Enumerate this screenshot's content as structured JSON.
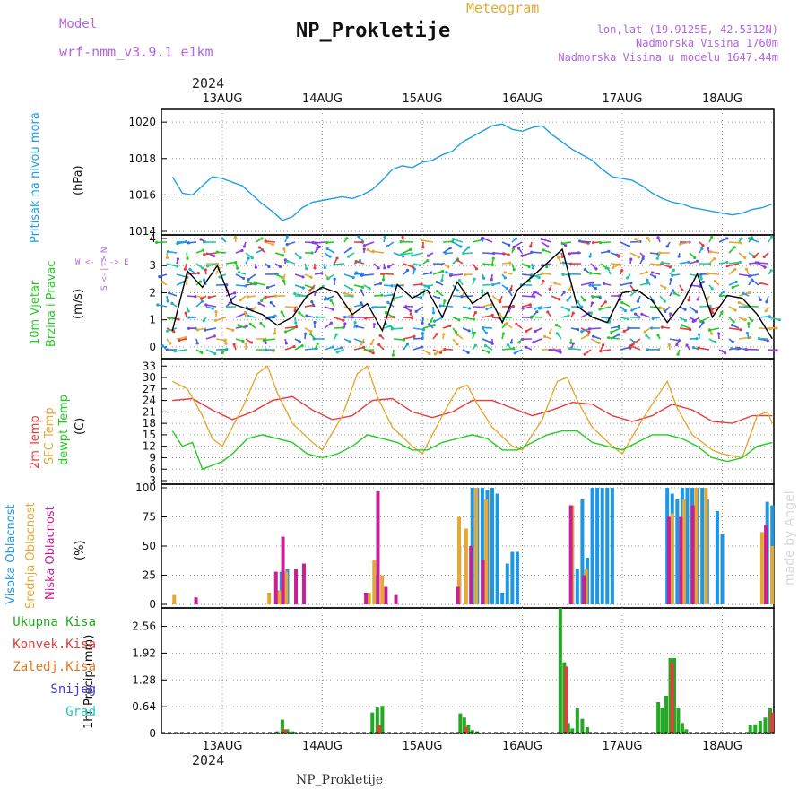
{
  "header": {
    "model_label": "Model",
    "model_name": "wrf-nmm_v3.9.1 e1km",
    "title": "NP_Prokletije",
    "subtitle": "Meteogram",
    "lonlat": "lon,lat (19.9125E, 42.5312N)",
    "elevation": "Nadmorska Visina 1760m",
    "model_elevation": "Nadmorska Visina u modelu 1647.44m",
    "year_top": "2024",
    "year_bottom": "2024",
    "footer": "NP_Prokletije",
    "credit": "made by Angel"
  },
  "colors": {
    "pressure": "#1ea0e6",
    "wind_label": "#22cc22",
    "temp2m": "#e63c3c",
    "sfctemp": "#e6a832",
    "dewpt": "#22cc22",
    "cloud_high": "#1e96e6",
    "cloud_mid": "#e6a832",
    "cloud_low": "#c81e96",
    "precip_total": "#22aa22",
    "precip_conv": "#e63c3c",
    "precip_frozen": "#e6781e",
    "snow": "#3c3ce6",
    "graupel": "#1ec8c8",
    "compass": "#b464e6"
  },
  "labels": {
    "pressure_y": "Pritisak na nivou mora",
    "pressure_unit": "(hPa)",
    "wind_y1": "10m Vjetar",
    "wind_y2": "Brzina i Pravac",
    "wind_unit": "(m/s)",
    "compass": "W  <- | ->  E",
    "compass_vertical": "S <- | -> N",
    "temp_y1": "2m Temp",
    "temp_y2": "SFC Temp",
    "temp_y3": "dewpt Temp",
    "temp_unit": "(C)",
    "cloud_y1": "Visoka Oblacnost",
    "cloud_y2": "Srednja Oblacnost",
    "cloud_y3": "Niska Oblacnost",
    "cloud_unit": "(%)",
    "precip_legend": [
      "Ukupna Kisa",
      "Konvek.Kisa",
      "Zaledj.Kisa",
      "Snijeg",
      "Grad"
    ],
    "precip_unit": "1hr Precip (mm)"
  },
  "chart_data": [
    {
      "type": "line",
      "panel": "pressure",
      "x_categories": [
        "13AUG",
        "14AUG",
        "15AUG",
        "16AUG",
        "17AUG",
        "18AUG"
      ],
      "ylabel": "(hPa)",
      "yticks": [
        1014,
        1016,
        1018,
        1020
      ],
      "ylim": [
        1014,
        1020.5
      ],
      "grid": true,
      "series": [
        {
          "name": "Pritisak na nivou mora",
          "color": "#1ea0e6",
          "x": [
            -0.5,
            -0.4,
            -0.3,
            -0.2,
            -0.1,
            0.0,
            0.1,
            0.2,
            0.3,
            0.4,
            0.5,
            0.6,
            0.7,
            0.8,
            0.9,
            1.0,
            1.1,
            1.2,
            1.3,
            1.4,
            1.5,
            1.6,
            1.7,
            1.8,
            1.9,
            2.0,
            2.1,
            2.2,
            2.3,
            2.4,
            2.5,
            2.6,
            2.7,
            2.8,
            2.9,
            3.0,
            3.1,
            3.2,
            3.3,
            3.4,
            3.5,
            3.6,
            3.7,
            3.8,
            3.9,
            4.0,
            4.1,
            4.2,
            4.3,
            4.4,
            4.5,
            4.6,
            4.7,
            4.8,
            4.9,
            5.0,
            5.1,
            5.2,
            5.3,
            5.4,
            5.5
          ],
          "y": [
            1017.0,
            1016.1,
            1016.0,
            1016.5,
            1017.0,
            1016.9,
            1016.7,
            1016.5,
            1016.0,
            1015.5,
            1015.1,
            1014.6,
            1014.8,
            1015.3,
            1015.6,
            1015.7,
            1015.8,
            1015.9,
            1015.8,
            1016.0,
            1016.3,
            1016.8,
            1017.4,
            1017.6,
            1017.5,
            1017.8,
            1017.9,
            1018.2,
            1018.4,
            1018.9,
            1019.2,
            1019.5,
            1019.8,
            1019.9,
            1019.6,
            1019.5,
            1019.7,
            1019.8,
            1019.3,
            1018.9,
            1018.5,
            1018.2,
            1017.9,
            1017.4,
            1017.0,
            1016.9,
            1016.8,
            1016.5,
            1016.1,
            1015.8,
            1015.6,
            1015.5,
            1015.3,
            1015.2,
            1015.1,
            1015.0,
            1014.9,
            1015.0,
            1015.2,
            1015.3,
            1015.5
          ]
        }
      ]
    },
    {
      "type": "line",
      "panel": "wind",
      "x_categories": [
        "13AUG",
        "14AUG",
        "15AUG",
        "16AUG",
        "17AUG",
        "18AUG"
      ],
      "ylabel": "(m/s)",
      "yticks": [
        0,
        1,
        2,
        3,
        4
      ],
      "ylim": [
        -0.3,
        4
      ],
      "grid": true,
      "series": [
        {
          "name": "Brzina",
          "color": "#000000",
          "x": [
            -0.5,
            -0.35,
            -0.2,
            -0.05,
            0.1,
            0.25,
            0.4,
            0.55,
            0.7,
            0.85,
            1.0,
            1.15,
            1.3,
            1.45,
            1.6,
            1.75,
            1.9,
            2.05,
            2.2,
            2.35,
            2.5,
            2.65,
            2.8,
            2.95,
            3.1,
            3.25,
            3.4,
            3.55,
            3.7,
            3.85,
            4.0,
            4.15,
            4.3,
            4.45,
            4.6,
            4.75,
            4.9,
            5.05,
            5.2,
            5.35,
            5.5
          ],
          "y": [
            0.6,
            2.8,
            2.2,
            3.0,
            1.6,
            1.4,
            1.2,
            0.8,
            1.1,
            1.9,
            2.2,
            2.0,
            1.2,
            1.6,
            0.6,
            2.3,
            1.8,
            2.1,
            1.1,
            2.4,
            1.6,
            2.0,
            0.9,
            2.1,
            2.6,
            3.1,
            3.6,
            1.5,
            1.1,
            0.9,
            2.0,
            2.1,
            1.7,
            0.9,
            1.6,
            2.7,
            1.1,
            1.9,
            1.8,
            1.2,
            0.3
          ]
        }
      ]
    },
    {
      "type": "line",
      "panel": "temperature",
      "x_categories": [
        "13AUG",
        "14AUG",
        "15AUG",
        "16AUG",
        "17AUG",
        "18AUG"
      ],
      "ylabel": "(C)",
      "yticks": [
        3,
        6,
        9,
        12,
        15,
        18,
        21,
        24,
        27,
        30,
        33
      ],
      "ylim": [
        3,
        34
      ],
      "grid": true,
      "series": [
        {
          "name": "2m Temp",
          "color": "#e63c3c",
          "x": [
            -0.5,
            -0.3,
            -0.1,
            0.1,
            0.3,
            0.5,
            0.7,
            0.9,
            1.1,
            1.3,
            1.5,
            1.7,
            1.9,
            2.1,
            2.3,
            2.5,
            2.7,
            2.9,
            3.1,
            3.3,
            3.5,
            3.7,
            3.9,
            4.1,
            4.3,
            4.5,
            4.7,
            4.9,
            5.1,
            5.3,
            5.5
          ],
          "y": [
            24.0,
            24.5,
            21.5,
            19.0,
            21.0,
            24.0,
            25.0,
            21.5,
            19.0,
            20.0,
            24.0,
            24.5,
            21.0,
            19.5,
            21.0,
            24.0,
            24.0,
            22.0,
            20.0,
            21.5,
            23.5,
            23.0,
            20.0,
            18.5,
            20.0,
            23.0,
            21.5,
            18.5,
            18.0,
            20.0,
            20.0
          ]
        },
        {
          "name": "SFC Temp",
          "color": "#e6a832",
          "x": [
            -0.5,
            -0.35,
            -0.2,
            -0.1,
            0.0,
            0.2,
            0.35,
            0.45,
            0.55,
            0.7,
            0.9,
            1.0,
            1.2,
            1.35,
            1.45,
            1.55,
            1.7,
            1.9,
            2.0,
            2.2,
            2.35,
            2.45,
            2.55,
            2.7,
            2.9,
            3.0,
            3.2,
            3.35,
            3.45,
            3.55,
            3.7,
            3.9,
            4.0,
            4.2,
            4.35,
            4.45,
            4.55,
            4.7,
            4.9,
            5.0,
            5.2,
            5.35,
            5.45,
            5.5
          ],
          "y": [
            29.0,
            27.0,
            20.0,
            14.0,
            12.0,
            22.0,
            31.0,
            33.0,
            26.0,
            18.0,
            13.0,
            11.0,
            20.0,
            31.0,
            33.0,
            25.0,
            17.0,
            12.0,
            10.0,
            20.0,
            27.0,
            28.0,
            23.0,
            17.0,
            12.0,
            11.0,
            19.0,
            29.0,
            30.0,
            24.0,
            17.0,
            12.0,
            10.0,
            19.0,
            25.0,
            29.0,
            22.0,
            15.0,
            11.0,
            10.0,
            9.0,
            20.0,
            21.0,
            18.0
          ]
        },
        {
          "name": "dewpt Temp",
          "color": "#22cc22",
          "x": [
            -0.5,
            -0.4,
            -0.3,
            -0.2,
            -0.1,
            0.0,
            0.1,
            0.25,
            0.4,
            0.55,
            0.7,
            0.85,
            1.0,
            1.15,
            1.3,
            1.45,
            1.6,
            1.75,
            1.9,
            2.05,
            2.2,
            2.35,
            2.5,
            2.65,
            2.8,
            2.95,
            3.1,
            3.25,
            3.4,
            3.55,
            3.7,
            3.85,
            4.0,
            4.15,
            4.3,
            4.45,
            4.6,
            4.75,
            4.9,
            5.05,
            5.2,
            5.35,
            5.5
          ],
          "y": [
            16.0,
            12.0,
            13.0,
            6.0,
            7.0,
            8.0,
            10.0,
            14.0,
            15.0,
            14.0,
            13.0,
            10.0,
            9.0,
            10.0,
            12.0,
            15.0,
            14.0,
            13.0,
            11.0,
            11.0,
            13.0,
            14.0,
            15.0,
            14.0,
            11.0,
            11.0,
            13.0,
            15.0,
            16.0,
            16.0,
            13.0,
            12.0,
            11.0,
            13.0,
            15.0,
            15.0,
            14.0,
            12.0,
            9.0,
            8.0,
            9.0,
            12.0,
            13.0
          ]
        }
      ]
    },
    {
      "type": "bar",
      "panel": "cloud",
      "x_categories": [
        "13AUG",
        "14AUG",
        "15AUG",
        "16AUG",
        "17AUG",
        "18AUG"
      ],
      "ylabel": "(%)",
      "yticks": [
        0,
        25,
        50,
        75,
        100
      ],
      "ylim": [
        0,
        100
      ],
      "grid": true,
      "series": [
        {
          "name": "Visoka Oblacnost",
          "color": "#1e96e6",
          "x": [
            0.59,
            0.65,
            1.55,
            2.37,
            2.5,
            2.55,
            2.6,
            2.65,
            2.7,
            2.75,
            2.8,
            2.85,
            2.9,
            2.95,
            3.0,
            3.05,
            3.5,
            3.55,
            3.6,
            3.65,
            3.7,
            3.75,
            3.8,
            3.85,
            3.9,
            4.45,
            4.5,
            4.55,
            4.6,
            4.65,
            4.7,
            4.75,
            4.8,
            4.85,
            4.95,
            5.0,
            5.05,
            5.45,
            5.5
          ],
          "y": [
            28,
            30,
            25,
            50,
            100,
            100,
            100,
            98,
            100,
            95,
            10,
            35,
            45,
            45,
            0,
            0,
            85,
            30,
            90,
            40,
            100,
            100,
            100,
            100,
            100,
            100,
            95,
            90,
            100,
            100,
            100,
            100,
            100,
            90,
            80,
            60,
            0,
            88,
            85
          ]
        },
        {
          "name": "Srednja Oblacnost",
          "color": "#e6a832",
          "x": [
            -0.5,
            -0.15,
            0.45,
            0.55,
            0.62,
            1.45,
            1.5,
            1.58,
            2.35,
            2.42,
            2.52,
            2.62,
            3.48,
            3.62,
            4.48,
            4.6,
            4.72,
            4.82,
            5.38,
            5.42,
            5.48
          ],
          "y": [
            8,
            0,
            10,
            12,
            28,
            10,
            38,
            25,
            75,
            65,
            100,
            90,
            85,
            30,
            78,
            90,
            100,
            100,
            62,
            60,
            50
          ]
        },
        {
          "name": "Niska Oblacnost",
          "color": "#c81e96",
          "x": [
            -0.3,
            0.5,
            0.57,
            0.7,
            0.78,
            1.4,
            1.52,
            1.6,
            1.7,
            2.32,
            2.45,
            2.57,
            3.45,
            3.58,
            4.43,
            4.55,
            4.67,
            5.4,
            5.5
          ],
          "y": [
            6,
            28,
            58,
            30,
            35,
            10,
            97,
            15,
            8,
            15,
            50,
            38,
            85,
            25,
            75,
            75,
            85,
            68,
            70
          ]
        }
      ]
    },
    {
      "type": "bar",
      "panel": "precip",
      "x_categories": [
        "13AUG",
        "14AUG",
        "15AUG",
        "16AUG",
        "17AUG",
        "18AUG"
      ],
      "ylabel": "1hr Precip (mm)",
      "yticks": [
        0,
        0.64,
        1.28,
        1.92,
        2.56
      ],
      "ylim": [
        0,
        3.0
      ],
      "grid": true,
      "series": [
        {
          "name": "Ukupna Kisa",
          "color": "#22aa22",
          "x": [
            0.55,
            0.6,
            0.65,
            0.7,
            1.5,
            1.55,
            1.6,
            2.38,
            2.42,
            2.46,
            2.5,
            2.55,
            3.38,
            3.42,
            3.46,
            3.5,
            3.55,
            3.6,
            3.65,
            4.36,
            4.4,
            4.44,
            4.48,
            4.52,
            4.56,
            4.6,
            4.64,
            5.28,
            5.33,
            5.38,
            5.43,
            5.48,
            5.52
          ],
          "y": [
            0.05,
            0.33,
            0.1,
            0.05,
            0.5,
            0.62,
            0.66,
            0.48,
            0.38,
            0.2,
            0.08,
            0.05,
            3.0,
            1.7,
            0.25,
            0.12,
            0.6,
            0.35,
            0.15,
            0.75,
            0.6,
            0.9,
            1.8,
            1.8,
            0.6,
            0.25,
            0.1,
            0.2,
            0.22,
            0.3,
            0.38,
            0.6,
            1.1
          ]
        },
        {
          "name": "Konvek.Kisa",
          "color": "#e63c3c",
          "x": [
            0.6,
            1.55,
            2.42,
            3.42,
            4.48,
            5.48
          ],
          "y": [
            0.1,
            0.2,
            0.15,
            1.6,
            1.7,
            0.5
          ]
        }
      ]
    }
  ]
}
